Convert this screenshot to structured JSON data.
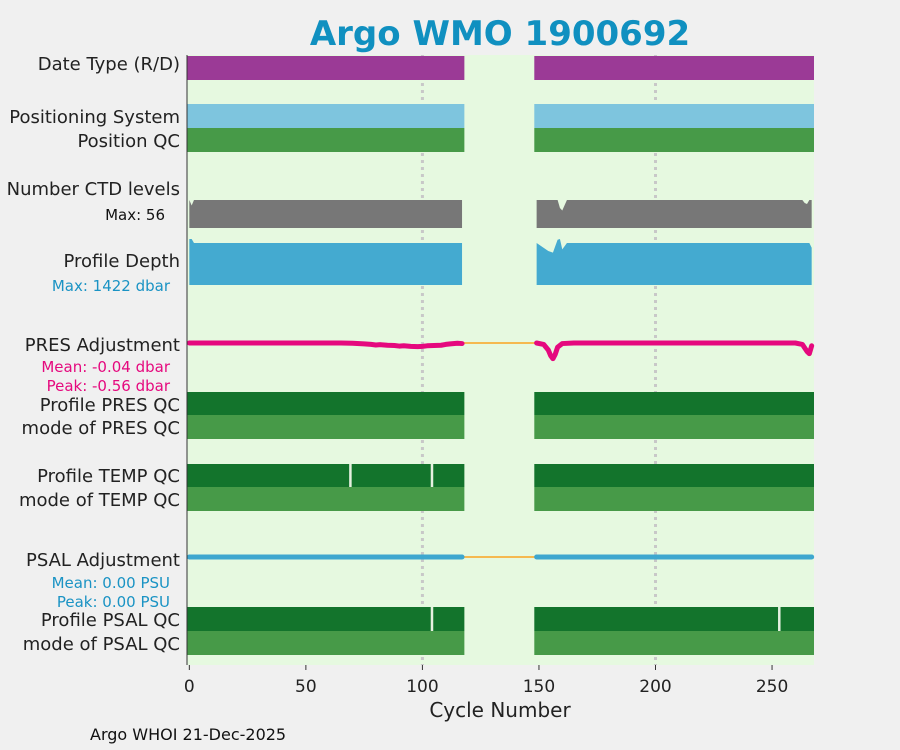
{
  "chart_data": {
    "type": "timeline",
    "title": "Argo WMO 1900692",
    "xlabel": "Cycle Number",
    "xlim": [
      -1,
      268
    ],
    "xticks": [
      0,
      50,
      100,
      150,
      200,
      250
    ],
    "grid_x": [
      100,
      200
    ],
    "data_gap": [
      118,
      148
    ],
    "colors": {
      "title": "#1090c0",
      "plot_bg": "#e6f9e0",
      "date_type": "#9b3a96",
      "positioning_system": "#7ec5de",
      "position_qc": "#479a48",
      "ctd_levels": "#777777",
      "profile_depth": "#44aad0",
      "pres_adjustment": "#e5097e",
      "pres_stats": "#e5097e",
      "profile_qc_dark": "#13742c",
      "mode_qc": "#479a48",
      "psal_adjustment": "#3ea7cf",
      "psal_stats": "#1a93c4",
      "depth_stats": "#1a93c4",
      "gap_line": "#f5b950",
      "grid": "#c8c8c8"
    },
    "rows": {
      "date_type": {
        "label": "Date Type (R/D)"
      },
      "positioning_system": {
        "label": "Positioning System"
      },
      "position_qc": {
        "label": "Position QC"
      },
      "ctd_levels": {
        "label": "Number CTD levels",
        "stat": "Max: 56",
        "max": 56
      },
      "profile_depth": {
        "label": "Profile Depth",
        "stat": "Max: 1422 dbar",
        "max": 1422
      },
      "pres_adjustment": {
        "label": "PRES Adjustment",
        "stat_mean": "Mean: -0.04 dbar",
        "stat_peak": "Peak: -0.56 dbar",
        "peak": -0.56
      },
      "profile_pres_qc": {
        "label": "Profile PRES QC"
      },
      "mode_pres_qc": {
        "label": "mode of PRES QC"
      },
      "profile_temp_qc": {
        "label": "Profile TEMP QC",
        "marks": [
          69,
          104
        ]
      },
      "mode_temp_qc": {
        "label": "mode of TEMP QC"
      },
      "psal_adjustment": {
        "label": "PSAL Adjustment",
        "stat_mean": "Mean: 0.00 PSU",
        "stat_peak": "Peak: 0.00 PSU"
      },
      "profile_psal_qc": {
        "label": "Profile PSAL QC",
        "marks": [
          104,
          253
        ]
      },
      "mode_psal_qc": {
        "label": "mode of PSAL QC"
      }
    },
    "series": {
      "pres_adjustment": {
        "x": [
          0,
          10,
          20,
          30,
          40,
          50,
          60,
          65,
          70,
          75,
          78,
          80,
          82,
          85,
          88,
          90,
          92,
          95,
          98,
          100,
          102,
          105,
          108,
          110,
          112,
          115,
          117,
          149,
          152,
          154,
          155,
          156,
          157,
          158,
          160,
          165,
          170,
          180,
          200,
          220,
          240,
          250,
          260,
          263,
          265,
          266,
          267
        ],
        "y": [
          0,
          0,
          0,
          0,
          0,
          0,
          0,
          0,
          -0.01,
          -0.03,
          -0.05,
          -0.07,
          -0.06,
          -0.08,
          -0.09,
          -0.11,
          -0.1,
          -0.12,
          -0.13,
          -0.12,
          -0.1,
          -0.09,
          -0.08,
          -0.05,
          -0.03,
          -0.01,
          -0.02,
          0,
          -0.05,
          -0.25,
          -0.45,
          -0.56,
          -0.4,
          -0.15,
          -0.02,
          0,
          0,
          0,
          0,
          0,
          0,
          0,
          0,
          -0.05,
          -0.3,
          -0.38,
          -0.1
        ]
      },
      "psal_adjustment": {
        "x": [
          0,
          10,
          20,
          40,
          60,
          80,
          100,
          117,
          149,
          160,
          180,
          200,
          220,
          240,
          260,
          267
        ],
        "y": [
          0,
          0,
          0,
          0,
          0,
          0,
          0,
          0,
          0,
          0,
          0,
          0,
          0,
          0,
          0,
          0
        ]
      },
      "ctd_levels": {
        "x": [
          0,
          1,
          2,
          117,
          149,
          158,
          159,
          160,
          162,
          263,
          264,
          265,
          266,
          267
        ],
        "y": [
          56,
          45,
          56,
          56,
          56,
          56,
          40,
          35,
          56,
          56,
          50,
          48,
          56,
          56
        ]
      },
      "profile_depth": {
        "x": [
          0,
          1,
          2,
          117,
          149,
          154,
          156,
          157,
          158,
          159,
          160,
          162,
          266,
          267
        ],
        "y": [
          1422,
          1422,
          1300,
          1300,
          1300,
          1050,
          1000,
          1200,
          1400,
          1422,
          1100,
          1300,
          1300,
          1150
        ]
      }
    },
    "footer": "Argo WHOI 21-Dec-2025"
  }
}
